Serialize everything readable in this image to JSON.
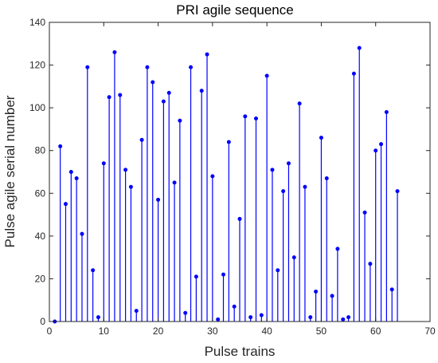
{
  "chart_data": {
    "type": "stem",
    "title": "PRI agile sequence",
    "xlabel": "Pulse trains",
    "ylabel": "Pulse agile serial number",
    "xlim": [
      0,
      70
    ],
    "ylim": [
      0,
      140
    ],
    "xticks": [
      0,
      10,
      20,
      30,
      40,
      50,
      60,
      70
    ],
    "yticks": [
      0,
      20,
      40,
      60,
      80,
      100,
      120,
      140
    ],
    "grid": false,
    "color": "#0000ff",
    "x": [
      1,
      2,
      3,
      4,
      5,
      6,
      7,
      8,
      9,
      10,
      11,
      12,
      13,
      14,
      15,
      16,
      17,
      18,
      19,
      20,
      21,
      22,
      23,
      24,
      25,
      26,
      27,
      28,
      29,
      30,
      31,
      32,
      33,
      34,
      35,
      36,
      37,
      38,
      39,
      40,
      41,
      42,
      43,
      44,
      45,
      46,
      47,
      48,
      49,
      50,
      51,
      52,
      53,
      54,
      55,
      56,
      57,
      58,
      59,
      60,
      61,
      62,
      63,
      64
    ],
    "values": [
      0,
      82,
      55,
      70,
      67,
      41,
      119,
      24,
      2,
      74,
      105,
      126,
      106,
      71,
      63,
      5,
      85,
      119,
      112,
      57,
      103,
      107,
      65,
      94,
      4,
      119,
      21,
      108,
      125,
      68,
      1,
      22,
      84,
      7,
      48,
      96,
      2,
      95,
      3,
      115,
      71,
      24,
      61,
      74,
      30,
      102,
      63,
      2,
      14,
      86,
      67,
      12,
      34,
      1,
      2,
      116,
      128,
      51,
      27,
      80,
      83,
      98,
      15,
      61
    ]
  }
}
